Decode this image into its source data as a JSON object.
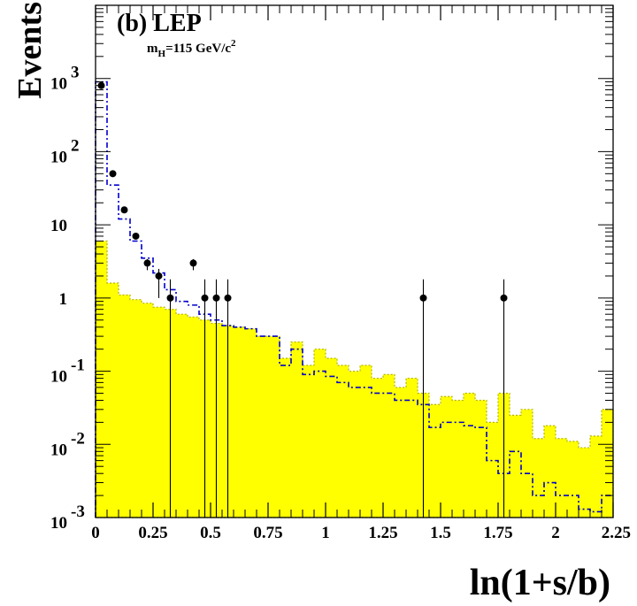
{
  "chart_data": {
    "type": "histogram",
    "title": "(b) LEP",
    "subtitle": {
      "prefix": "m",
      "subscript": "H",
      "main": "=115 GeV/c",
      "superscript": "2"
    },
    "xlabel": "ln(1+s/b)",
    "ylabel": "Events",
    "xlim": [
      0,
      2.25
    ],
    "ylim": [
      0.001,
      10000
    ],
    "yscale": "log",
    "grid": false,
    "x_ticks": [
      {
        "value": 0,
        "label": "0"
      },
      {
        "value": 0.25,
        "label": "0.25"
      },
      {
        "value": 0.5,
        "label": "0.5"
      },
      {
        "value": 0.75,
        "label": "0.75"
      },
      {
        "value": 1,
        "label": "1"
      },
      {
        "value": 1.25,
        "label": "1.25"
      },
      {
        "value": 1.5,
        "label": "1.5"
      },
      {
        "value": 1.75,
        "label": "1.75"
      },
      {
        "value": 2,
        "label": "2"
      },
      {
        "value": 2.25,
        "label": "2.25"
      }
    ],
    "y_ticks": [
      {
        "value": 1000,
        "base": "10",
        "exp": "3"
      },
      {
        "value": 100,
        "base": "10",
        "exp": "2"
      },
      {
        "value": 10,
        "base": "10",
        "exp": ""
      },
      {
        "value": 1,
        "base": "1",
        "exp": ""
      },
      {
        "value": 0.1,
        "base": "10",
        "exp": "-1"
      },
      {
        "value": 0.01,
        "base": "10",
        "exp": "-2"
      },
      {
        "value": 0.001,
        "base": "10",
        "exp": "-3"
      }
    ],
    "bin_edges": [
      0,
      0.05,
      0.1,
      0.15,
      0.2,
      0.25,
      0.3,
      0.35,
      0.4,
      0.45,
      0.5,
      0.55,
      0.6,
      0.65,
      0.7,
      0.75,
      0.8,
      0.85,
      0.9,
      0.95,
      1.0,
      1.05,
      1.1,
      1.15,
      1.2,
      1.25,
      1.3,
      1.35,
      1.4,
      1.45,
      1.5,
      1.55,
      1.6,
      1.65,
      1.7,
      1.75,
      1.8,
      1.85,
      1.9,
      1.95,
      2.0,
      2.05,
      2.1,
      2.15,
      2.2,
      2.25
    ],
    "series": [
      {
        "kind": "background",
        "color": "#ffff00",
        "edge_color": "#b3b300",
        "values": [
          6,
          1.6,
          1.1,
          0.95,
          0.85,
          0.75,
          0.7,
          0.6,
          0.55,
          0.5,
          0.45,
          0.42,
          0.4,
          0.38,
          0.3,
          0.3,
          0.15,
          0.25,
          0.12,
          0.2,
          0.15,
          0.12,
          0.1,
          0.12,
          0.08,
          0.09,
          0.06,
          0.08,
          0.05,
          0.035,
          0.045,
          0.04,
          0.05,
          0.04,
          0.02,
          0.05,
          0.025,
          0.03,
          0.012,
          0.018,
          0.012,
          0.011,
          0.009,
          0.013,
          0.03
        ]
      },
      {
        "kind": "signal_plus_background",
        "color": "#0000cc",
        "values": [
          900,
          35,
          12,
          6,
          3.5,
          2.2,
          1.3,
          0.9,
          0.8,
          0.6,
          0.5,
          0.42,
          0.4,
          0.38,
          0.3,
          0.3,
          0.12,
          0.2,
          0.09,
          0.1,
          0.085,
          0.07,
          0.06,
          0.06,
          0.05,
          0.05,
          0.04,
          0.04,
          0.035,
          0.017,
          0.02,
          0.02,
          0.018,
          0.017,
          0.006,
          0.004,
          0.008,
          0.004,
          0.002,
          0.003,
          0.002,
          0.002,
          0.0013,
          0.0012,
          0.002
        ]
      }
    ],
    "data_points": {
      "color": "#000000",
      "points": [
        {
          "x": 0.025,
          "y": 800,
          "err_low": 0.03,
          "err_high": 0.03
        },
        {
          "x": 0.075,
          "y": 50,
          "err_low": 0.12,
          "err_high": 0.1
        },
        {
          "x": 0.125,
          "y": 16,
          "err_low": 0.2,
          "err_high": 0.18
        },
        {
          "x": 0.175,
          "y": 7,
          "err_low": 0.32,
          "err_high": 0.26
        },
        {
          "x": 0.225,
          "y": 3,
          "err_low": 0.6,
          "err_high": 0.4
        },
        {
          "x": 0.275,
          "y": 2,
          "err_low": 1,
          "err_high": 0.5
        },
        {
          "x": 0.325,
          "y": 1,
          "err_low": 1,
          "err_high": 0.8
        },
        {
          "x": 0.425,
          "y": 3,
          "err_low": 0.6,
          "err_high": 0.4
        },
        {
          "x": 0.475,
          "y": 1,
          "err_low": 1,
          "err_high": 0.8
        },
        {
          "x": 0.525,
          "y": 1,
          "err_low": 1,
          "err_high": 0.8
        },
        {
          "x": 0.575,
          "y": 1,
          "err_low": 1,
          "err_high": 0.8
        },
        {
          "x": 1.425,
          "y": 1,
          "err_low": 1,
          "err_high": 0.8
        },
        {
          "x": 1.775,
          "y": 1,
          "err_low": 1,
          "err_high": 0.8
        }
      ]
    }
  }
}
